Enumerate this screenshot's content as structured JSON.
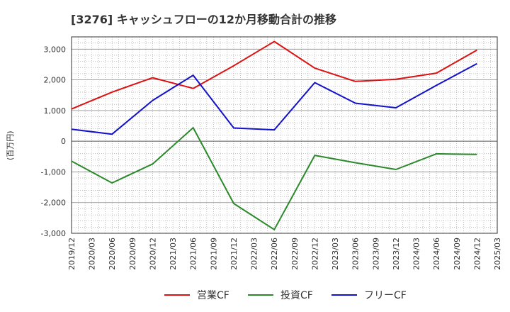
{
  "title": "[3276]  キャッシュフローの12か月移動合計の推移",
  "chart_data": {
    "type": "line",
    "title": "[3276]  キャッシュフローの12か月移動合計の推移",
    "ylabel": "(百万円)",
    "xlabel": "",
    "ylim": [
      -3000,
      3400
    ],
    "yticks": [
      3000,
      2000,
      1000,
      0,
      -1000,
      -2000,
      -3000
    ],
    "ytick_labels": [
      "3,000",
      "2,000",
      "1,000",
      "0",
      "-1,000",
      "-2,000",
      "-3,000"
    ],
    "x_labels": [
      "2019/12",
      "2020/03",
      "2020/06",
      "2020/09",
      "2020/12",
      "2021/03",
      "2021/06",
      "2021/09",
      "2021/12",
      "2022/03",
      "2022/06",
      "2022/09",
      "2022/12",
      "2023/03",
      "2023/06",
      "2023/09",
      "2023/12",
      "2024/03",
      "2024/06",
      "2024/09",
      "2024/12",
      "2025/03"
    ],
    "grid": true,
    "legend_position": "bottom",
    "series": [
      {
        "name": "営業CF",
        "color": "#dd1111",
        "x": [
          "2019/12",
          "2020/06",
          "2020/12",
          "2021/06",
          "2021/12",
          "2022/06",
          "2022/12",
          "2023/06",
          "2023/12",
          "2024/06",
          "2024/12"
        ],
        "values": [
          1050,
          1600,
          2070,
          1720,
          2460,
          3250,
          2380,
          1950,
          2020,
          2220,
          2970
        ]
      },
      {
        "name": "投資CF",
        "color": "#2a8a2a",
        "x": [
          "2019/12",
          "2020/06",
          "2020/12",
          "2021/06",
          "2021/12",
          "2022/06",
          "2022/12",
          "2023/06",
          "2023/12",
          "2024/06",
          "2024/12"
        ],
        "values": [
          -650,
          -1360,
          -740,
          440,
          -2030,
          -2880,
          -460,
          -700,
          -920,
          -410,
          -430
        ]
      },
      {
        "name": "フリーCF",
        "color": "#1111cc",
        "x": [
          "2019/12",
          "2020/06",
          "2020/12",
          "2021/06",
          "2021/12",
          "2022/06",
          "2022/12",
          "2023/06",
          "2023/12",
          "2024/06",
          "2024/12"
        ],
        "values": [
          390,
          230,
          1330,
          2150,
          430,
          370,
          1910,
          1240,
          1090,
          1820,
          2530
        ]
      }
    ]
  }
}
